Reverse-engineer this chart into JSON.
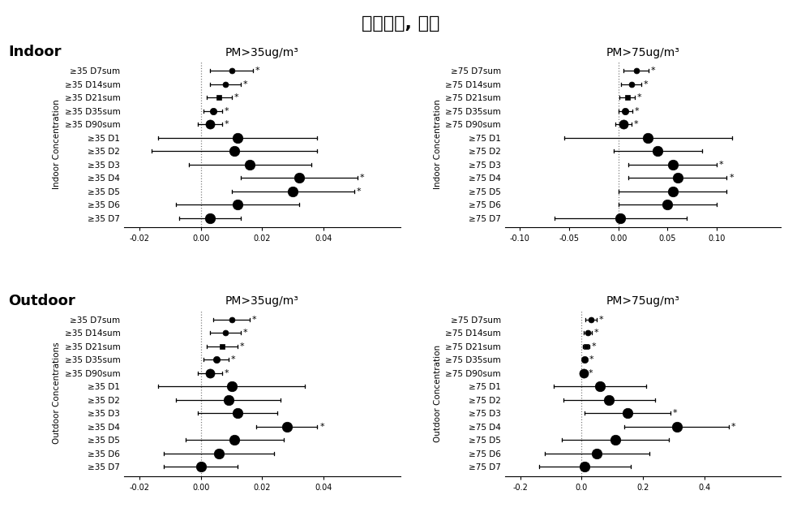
{
  "title": "급성악화, 겨울",
  "title_fontsize": 16,
  "panels": [
    {
      "row": 0,
      "col": 0,
      "section_label": "Indoor",
      "subtitle": "PM>35ug/m³",
      "ylabel": "Indoor Concentration",
      "xlim": [
        -0.025,
        0.065
      ],
      "xticks": [
        -0.02,
        0.0,
        0.02,
        0.04
      ],
      "xtick_labels": [
        "-0.02",
        "0.00",
        "0.02",
        "0.04"
      ],
      "vline": 0.0,
      "categories": [
        "≥35 D7sum",
        "≥35 D14sum",
        "≥35 D21sum",
        "≥35 D35sum",
        "≥35 D90sum",
        "≥35 D1",
        "≥35 D2",
        "≥35 D3",
        "≥35 D4",
        "≥35 D5",
        "≥35 D6",
        "≥35 D7"
      ],
      "values": [
        0.01,
        0.008,
        0.006,
        0.004,
        0.003,
        0.012,
        0.011,
        0.016,
        0.032,
        0.03,
        0.012,
        0.003
      ],
      "ci_low": [
        0.003,
        0.003,
        0.002,
        0.001,
        -0.001,
        -0.014,
        -0.016,
        -0.004,
        0.013,
        0.01,
        -0.008,
        -0.007
      ],
      "ci_high": [
        0.017,
        0.013,
        0.01,
        0.007,
        0.007,
        0.038,
        0.038,
        0.036,
        0.051,
        0.05,
        0.032,
        0.013
      ],
      "significant": [
        true,
        true,
        true,
        true,
        true,
        false,
        false,
        false,
        true,
        true,
        false,
        false
      ],
      "marker_sizes": [
        5,
        5,
        5,
        6,
        8,
        9,
        9,
        9,
        9,
        9,
        9,
        9
      ],
      "marker_styles": [
        "o",
        "o",
        "s",
        "o",
        "o",
        "o",
        "o",
        "o",
        "o",
        "o",
        "o",
        "o"
      ]
    },
    {
      "row": 0,
      "col": 1,
      "section_label": "",
      "subtitle": "PM>75ug/m³",
      "ylabel": "Indoor Concentration",
      "xlim": [
        -0.115,
        0.165
      ],
      "xticks": [
        -0.1,
        -0.05,
        0.0,
        0.05,
        0.1
      ],
      "xtick_labels": [
        "-0.10",
        "-0.05",
        "0.00",
        "0.05",
        "0.10"
      ],
      "vline": 0.0,
      "categories": [
        "≥75 D7sum",
        "≥75 D14sum",
        "≥75 D21sum",
        "≥75 D35sum",
        "≥75 D90sum",
        "≥75 D1",
        "≥75 D2",
        "≥75 D3",
        "≥75 D4",
        "≥75 D5",
        "≥75 D6",
        "≥75 D7"
      ],
      "values": [
        0.018,
        0.013,
        0.009,
        0.007,
        0.005,
        0.03,
        0.04,
        0.055,
        0.06,
        0.055,
        0.05,
        0.002
      ],
      "ci_low": [
        0.005,
        0.003,
        0.001,
        0.0,
        -0.003,
        -0.055,
        -0.005,
        0.01,
        0.01,
        0.0,
        0.0,
        -0.065
      ],
      "ci_high": [
        0.031,
        0.023,
        0.017,
        0.014,
        0.013,
        0.115,
        0.085,
        0.1,
        0.11,
        0.11,
        0.1,
        0.069
      ],
      "significant": [
        true,
        true,
        true,
        true,
        true,
        false,
        false,
        true,
        true,
        false,
        false,
        false
      ],
      "marker_sizes": [
        5,
        5,
        5,
        6,
        8,
        9,
        9,
        9,
        9,
        9,
        9,
        9
      ],
      "marker_styles": [
        "o",
        "o",
        "s",
        "o",
        "o",
        "o",
        "o",
        "o",
        "o",
        "o",
        "o",
        "o"
      ]
    },
    {
      "row": 1,
      "col": 0,
      "section_label": "Outdoor",
      "subtitle": "PM>35ug/m³",
      "ylabel": "Outdoor Concentrations",
      "xlim": [
        -0.025,
        0.065
      ],
      "xticks": [
        -0.02,
        0.0,
        0.02,
        0.04
      ],
      "xtick_labels": [
        "-0.02",
        "0.00",
        "0.02",
        "0.04"
      ],
      "vline": 0.0,
      "categories": [
        "≥35 D7sum",
        "≥35 D14sum",
        "≥35 D21sum",
        "≥35 D35sum",
        "≥35 D90sum",
        "≥35 D1",
        "≥35 D2",
        "≥35 D3",
        "≥35 D4",
        "≥35 D5",
        "≥35 D6",
        "≥35 D7"
      ],
      "values": [
        0.01,
        0.008,
        0.007,
        0.005,
        0.003,
        0.01,
        0.009,
        0.012,
        0.028,
        0.011,
        0.006,
        0.0
      ],
      "ci_low": [
        0.004,
        0.003,
        0.002,
        0.001,
        -0.001,
        -0.014,
        -0.008,
        -0.001,
        0.018,
        -0.005,
        -0.012,
        -0.012
      ],
      "ci_high": [
        0.016,
        0.013,
        0.012,
        0.009,
        0.007,
        0.034,
        0.026,
        0.025,
        0.038,
        0.027,
        0.024,
        0.012
      ],
      "significant": [
        true,
        true,
        true,
        true,
        true,
        false,
        false,
        false,
        true,
        false,
        false,
        false
      ],
      "marker_sizes": [
        5,
        5,
        5,
        6,
        8,
        9,
        9,
        9,
        9,
        9,
        9,
        9
      ],
      "marker_styles": [
        "o",
        "o",
        "s",
        "o",
        "o",
        "o",
        "o",
        "o",
        "o",
        "o",
        "o",
        "o"
      ]
    },
    {
      "row": 1,
      "col": 1,
      "section_label": "",
      "subtitle": "PM>75ug/m³",
      "ylabel": "Outdoor Concentration",
      "xlim": [
        -0.25,
        0.65
      ],
      "xticks": [
        -0.2,
        0.0,
        0.2,
        0.4
      ],
      "xtick_labels": [
        "-0.2",
        "0.0",
        "0.2",
        "0.4"
      ],
      "vline": 0.0,
      "categories": [
        "≥75 D7sum",
        "≥75 D14sum",
        "≥75 D21sum",
        "≥75 D35sum",
        "≥75 D90sum",
        "≥75 D1",
        "≥75 D2",
        "≥75 D3",
        "≥75 D4",
        "≥75 D5",
        "≥75 D6",
        "≥75 D7"
      ],
      "values": [
        0.03,
        0.02,
        0.015,
        0.01,
        0.006,
        0.06,
        0.09,
        0.15,
        0.31,
        0.11,
        0.05,
        0.01
      ],
      "ci_low": [
        0.012,
        0.007,
        0.004,
        0.002,
        -0.003,
        -0.09,
        -0.06,
        0.01,
        0.14,
        -0.065,
        -0.12,
        -0.14
      ],
      "ci_high": [
        0.048,
        0.033,
        0.026,
        0.018,
        0.015,
        0.21,
        0.24,
        0.29,
        0.48,
        0.285,
        0.22,
        0.16
      ],
      "significant": [
        true,
        true,
        true,
        true,
        true,
        false,
        false,
        true,
        true,
        false,
        false,
        false
      ],
      "marker_sizes": [
        5,
        5,
        5,
        6,
        8,
        9,
        9,
        9,
        9,
        9,
        9,
        9
      ],
      "marker_styles": [
        "o",
        "o",
        "s",
        "o",
        "o",
        "o",
        "o",
        "o",
        "o",
        "o",
        "o",
        "o"
      ]
    }
  ],
  "dot_color": "black",
  "line_color": "black",
  "bg_color": "white",
  "fontsize_labels": 7.5,
  "fontsize_ticks": 7,
  "fontsize_ylabel": 7.5,
  "fontsize_subtitle": 10,
  "fontsize_section": 13
}
